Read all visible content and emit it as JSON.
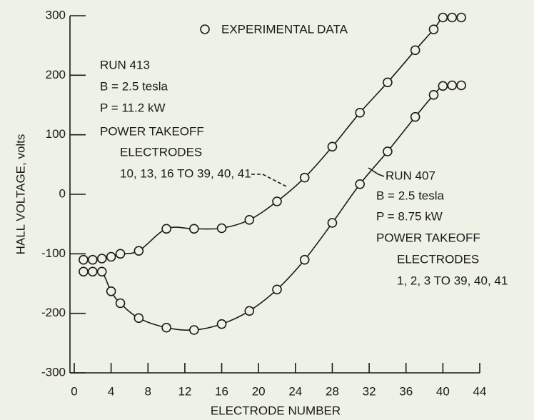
{
  "chart_data": {
    "type": "line",
    "x_label": "ELECTRODE NUMBER",
    "y_label": "HALL VOLTAGE, volts",
    "legend": "EXPERIMENTAL DATA",
    "xlim": [
      0,
      44
    ],
    "xticks": [
      0,
      4,
      8,
      12,
      16,
      20,
      24,
      28,
      32,
      36,
      40,
      44
    ],
    "ylim": [
      -300,
      300
    ],
    "yticks": [
      -300,
      -200,
      -100,
      0,
      100,
      200,
      300
    ],
    "series": [
      {
        "color": "#1a1a1a",
        "x": [
          1,
          2,
          3,
          4,
          5,
          7,
          10,
          13,
          16,
          19,
          22,
          25,
          28,
          31,
          34,
          37,
          39,
          40,
          41,
          42
        ],
        "values": [
          -110,
          -110,
          -108,
          -105,
          -100,
          -95,
          -58,
          -58,
          -57,
          -43,
          -12,
          28,
          80,
          137,
          188,
          242,
          277,
          297,
          297,
          297
        ]
      },
      {
        "color": "#1a1a1a",
        "x": [
          1,
          2,
          3,
          4,
          5,
          7,
          10,
          13,
          16,
          19,
          22,
          25,
          28,
          31,
          34,
          37,
          39,
          40,
          41,
          42
        ],
        "values": [
          -130,
          -130,
          -130,
          -163,
          -183,
          -208,
          -224,
          -228,
          -218,
          -196,
          -160,
          -110,
          -48,
          17,
          72,
          130,
          167,
          182,
          183,
          183
        ]
      }
    ],
    "annotations": [
      [
        "RUN 413",
        "B = 2.5 tesla",
        "P = 11.2 kW",
        "POWER TAKEOFF",
        "ELECTRODES",
        "10, 13, 16 TO 39, 40, 41"
      ],
      [
        "RUN 407",
        "B = 2.5 tesla",
        "P = 8.75 kW",
        "POWER TAKEOFF",
        "ELECTRODES",
        "1, 2, 3 TO 39, 40, 41"
      ]
    ]
  }
}
